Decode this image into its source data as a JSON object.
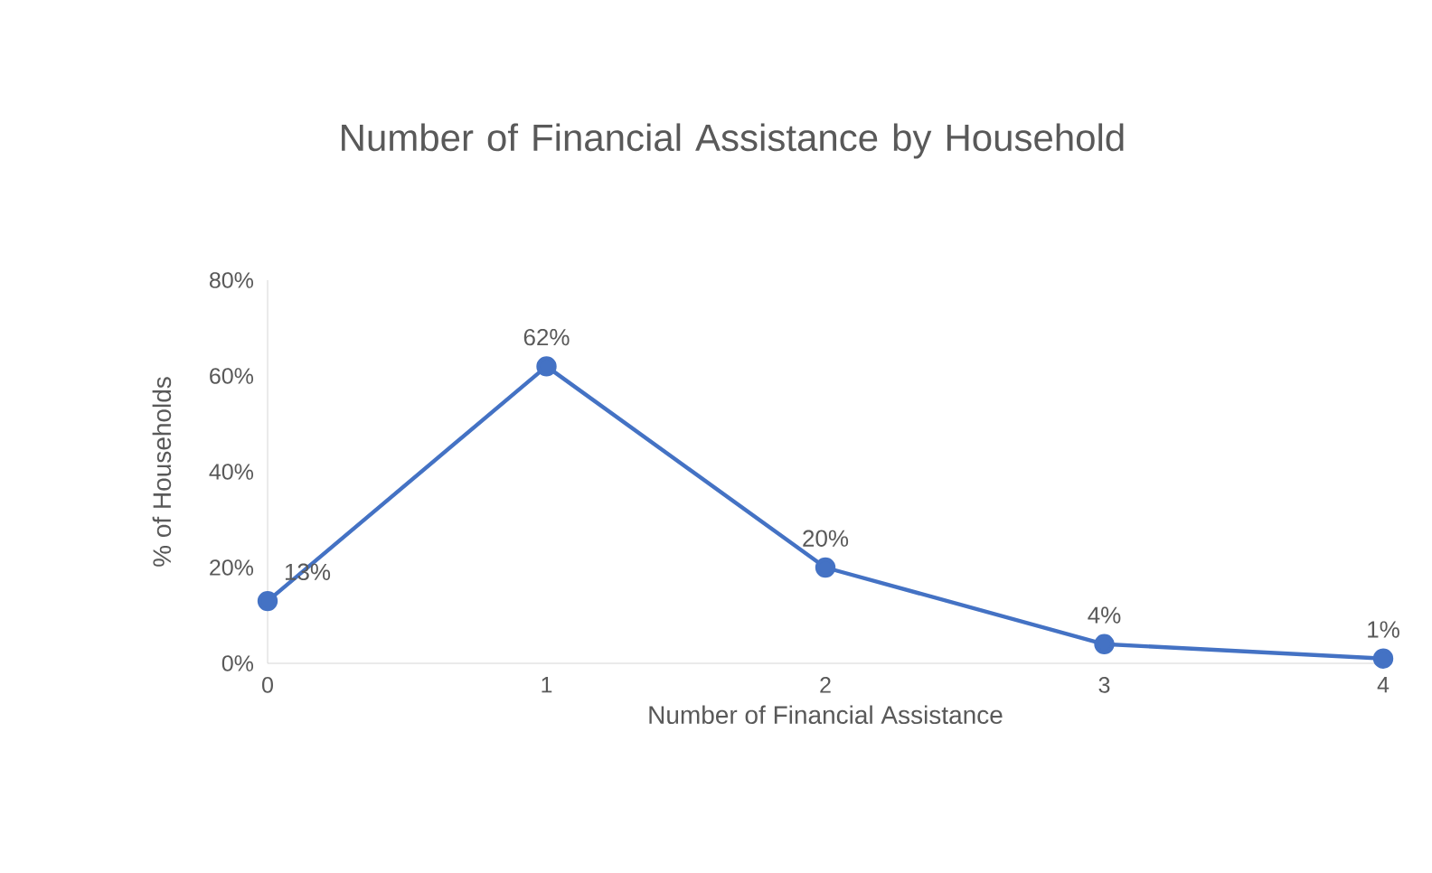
{
  "chart_data": {
    "type": "line",
    "title": "Number of Financial Assistance by Household",
    "xlabel": "Number of Financial Assistance",
    "ylabel": "% of Households",
    "categories": [
      "0",
      "1",
      "2",
      "3",
      "4"
    ],
    "values": [
      13,
      62,
      20,
      4,
      1
    ],
    "value_labels": [
      "13%",
      "62%",
      "20%",
      "4%",
      "1%"
    ],
    "color": "#4472c4",
    "marker": "circle",
    "line_style": "solid",
    "grid": false,
    "ylim": [
      0,
      80
    ],
    "yticks": [
      {
        "value": 0,
        "label": "0%"
      },
      {
        "value": 20,
        "label": "20%"
      },
      {
        "value": 40,
        "label": "40%"
      },
      {
        "value": 60,
        "label": "60%"
      },
      {
        "value": 80,
        "label": "80%"
      }
    ]
  }
}
